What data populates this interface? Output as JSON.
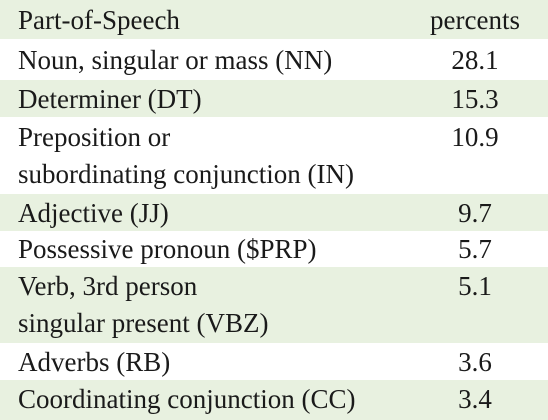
{
  "table": {
    "header": {
      "name": "Part-of-Speech",
      "value": "percents"
    },
    "rows": [
      {
        "name": [
          "Noun, singular or mass (NN)"
        ],
        "value": "28.1"
      },
      {
        "name": [
          "Determiner (DT)"
        ],
        "value": "15.3"
      },
      {
        "name": [
          "Preposition or",
          "subordinating conjunction (IN)"
        ],
        "value": "10.9"
      },
      {
        "name": [
          "Adjective (JJ)"
        ],
        "value": "9.7"
      },
      {
        "name": [
          "Possessive pronoun ($PRP)"
        ],
        "value": "5.7"
      },
      {
        "name": [
          "Verb, 3rd person",
          "singular present (VBZ)"
        ],
        "value": "5.1"
      },
      {
        "name": [
          "Adverbs (RB)"
        ],
        "value": "3.6"
      },
      {
        "name": [
          "Coordinating conjunction (CC)"
        ],
        "value": "3.4"
      }
    ],
    "colors": {
      "shaded_row": "#e8f1e0",
      "plain_row": "#ffffff",
      "text": "#1a1a1a"
    }
  }
}
